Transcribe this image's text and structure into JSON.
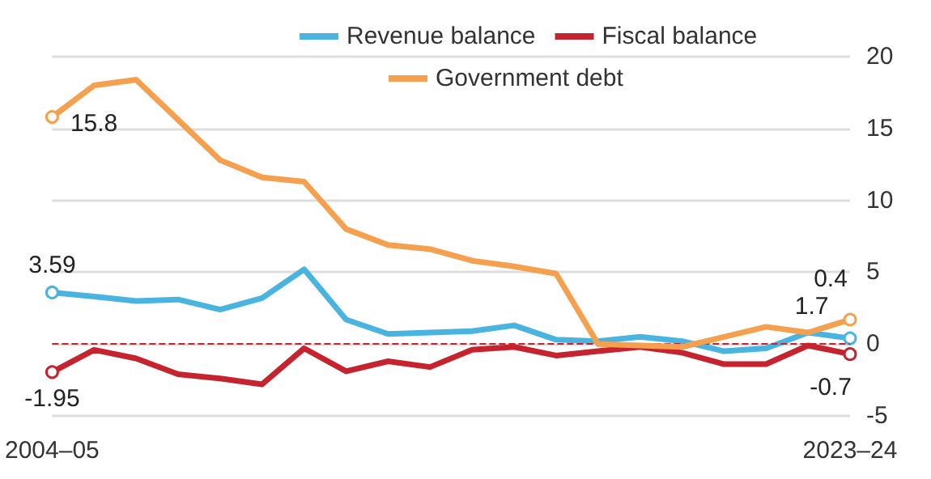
{
  "chart_data": {
    "type": "line",
    "categories": [
      "2004–05",
      null,
      null,
      null,
      null,
      null,
      null,
      null,
      null,
      null,
      null,
      null,
      null,
      null,
      null,
      null,
      null,
      null,
      null,
      "2023–24"
    ],
    "series": [
      {
        "name": "Revenue balance",
        "color": "#4ab4e0",
        "values": [
          3.59,
          3.3,
          3.0,
          3.1,
          2.4,
          3.2,
          5.2,
          1.7,
          0.7,
          0.8,
          0.9,
          1.3,
          0.3,
          0.2,
          0.5,
          0.2,
          -0.5,
          -0.3,
          0.8,
          0.4
        ],
        "value_labels": [
          "3.59",
          null,
          null,
          null,
          null,
          null,
          null,
          null,
          null,
          null,
          null,
          null,
          null,
          null,
          null,
          null,
          null,
          null,
          null,
          "0.4"
        ]
      },
      {
        "name": "Fiscal balance",
        "color": "#c5242f",
        "values": [
          -1.95,
          -0.4,
          -1.0,
          -2.1,
          -2.4,
          -2.8,
          -0.3,
          -1.9,
          -1.2,
          -1.6,
          -0.4,
          -0.2,
          -0.8,
          -0.5,
          -0.2,
          -0.6,
          -1.4,
          -1.4,
          -0.1,
          -0.7
        ],
        "value_labels": [
          "-1.95",
          null,
          null,
          null,
          null,
          null,
          null,
          null,
          null,
          null,
          null,
          null,
          null,
          null,
          null,
          null,
          null,
          null,
          null,
          "-0.7"
        ]
      },
      {
        "name": "Government debt",
        "color": "#f5a04e",
        "values": [
          15.8,
          18.0,
          18.4,
          15.6,
          12.8,
          11.6,
          11.3,
          8.0,
          6.9,
          6.6,
          5.8,
          5.4,
          4.9,
          0.0,
          -0.1,
          -0.2,
          0.5,
          1.2,
          0.8,
          1.7
        ],
        "value_labels": [
          "15.8",
          null,
          null,
          null,
          null,
          null,
          null,
          null,
          null,
          null,
          null,
          null,
          null,
          null,
          null,
          null,
          null,
          null,
          null,
          "1.7"
        ]
      }
    ],
    "ylim": [
      -5,
      20
    ],
    "yticks": [
      -5,
      0,
      5,
      10,
      15,
      20
    ],
    "grid": "y",
    "legend": "top",
    "ref_lines": [
      {
        "axis": "y",
        "value": 0,
        "color": "#c5242f",
        "line_style": "dashed"
      }
    ]
  }
}
